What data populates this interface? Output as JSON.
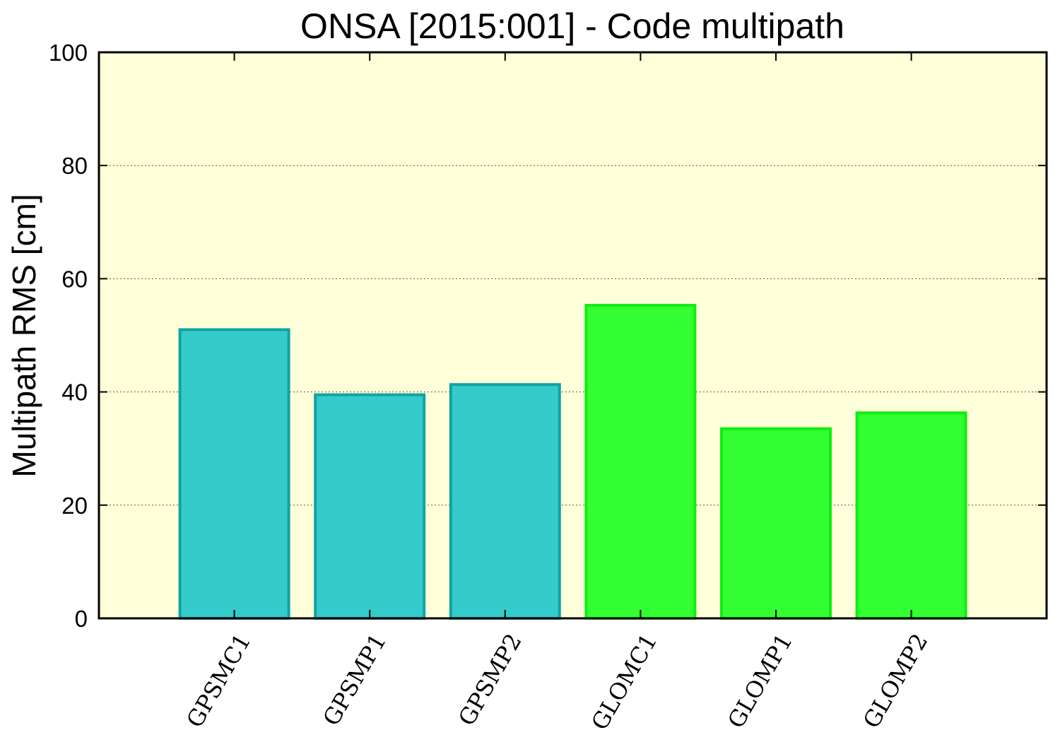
{
  "chart_data": {
    "type": "bar",
    "title": "ONSA [2015:001] - Code multipath",
    "ylabel": "Multipath RMS [cm]",
    "xlabel": "",
    "ylim": [
      0,
      100
    ],
    "yticks": [
      "0",
      "20",
      "40",
      "60",
      "80",
      "100"
    ],
    "grid": "horizontal-dotted",
    "categories": [
      "GPSMC1",
      "GPSMP1",
      "GPSMP2",
      "GLOMC1",
      "GLOMP1",
      "GLOMP2"
    ],
    "values": [
      51,
      39.5,
      41.3,
      55.3,
      33.5,
      36.3
    ],
    "colors": {
      "background": "#ffffd9",
      "gps_fill": "#36cbcb",
      "gps_edge": "#10a3a3",
      "glo_fill": "#33ff33",
      "glo_edge": "#10ee10"
    },
    "bar_fill": [
      "#36cbcb",
      "#36cbcb",
      "#36cbcb",
      "#33ff33",
      "#33ff33",
      "#33ff33"
    ],
    "bar_edge": [
      "#10a3a3",
      "#10a3a3",
      "#10a3a3",
      "#10ee10",
      "#10ee10",
      "#10ee10"
    ]
  }
}
